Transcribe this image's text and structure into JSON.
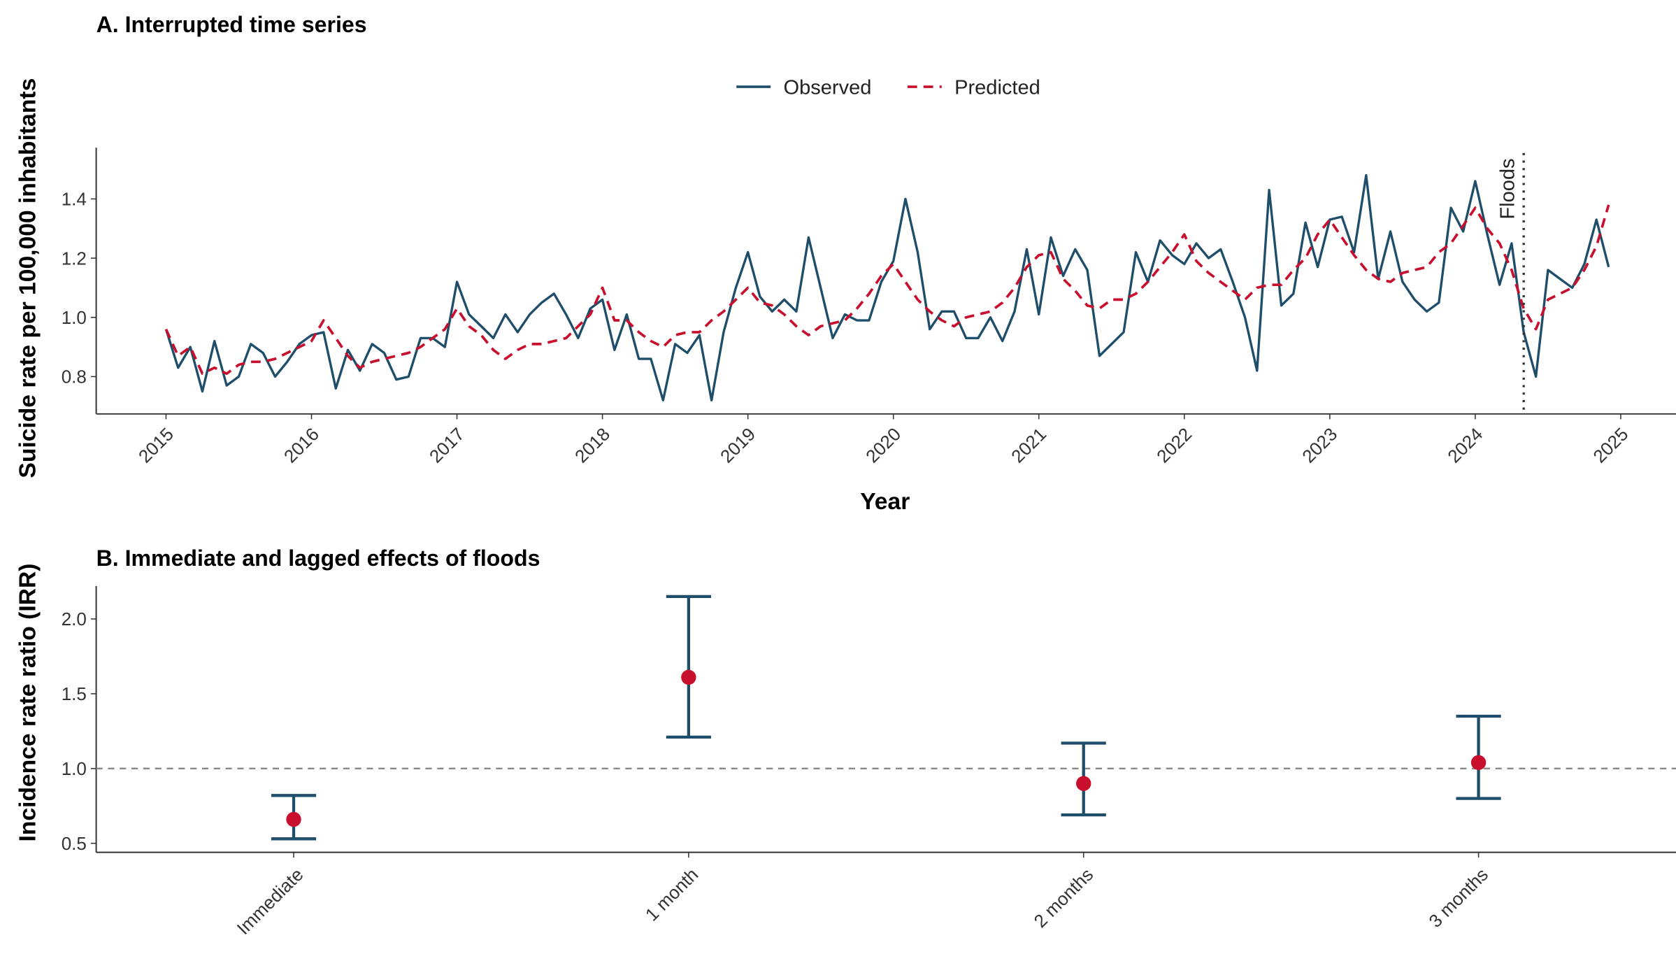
{
  "chart_data": [
    {
      "type": "line",
      "title": "A. Interrupted time series",
      "x_label": "Year",
      "y_label": "Suicide rate per 100,000 inhabitants",
      "x": [
        2015,
        2015.083,
        2015.167,
        2015.25,
        2015.333,
        2015.417,
        2015.5,
        2015.583,
        2015.667,
        2015.75,
        2015.833,
        2015.917,
        2016,
        2016.083,
        2016.167,
        2016.25,
        2016.333,
        2016.417,
        2016.5,
        2016.583,
        2016.667,
        2016.75,
        2016.833,
        2016.917,
        2017,
        2017.083,
        2017.167,
        2017.25,
        2017.333,
        2017.417,
        2017.5,
        2017.583,
        2017.667,
        2017.75,
        2017.833,
        2017.917,
        2018,
        2018.083,
        2018.167,
        2018.25,
        2018.333,
        2018.417,
        2018.5,
        2018.583,
        2018.667,
        2018.75,
        2018.833,
        2018.917,
        2019,
        2019.083,
        2019.167,
        2019.25,
        2019.333,
        2019.417,
        2019.5,
        2019.583,
        2019.667,
        2019.75,
        2019.833,
        2019.917,
        2020,
        2020.083,
        2020.167,
        2020.25,
        2020.333,
        2020.417,
        2020.5,
        2020.583,
        2020.667,
        2020.75,
        2020.833,
        2020.917,
        2021,
        2021.083,
        2021.167,
        2021.25,
        2021.333,
        2021.417,
        2021.5,
        2021.583,
        2021.667,
        2021.75,
        2021.833,
        2021.917,
        2022,
        2022.083,
        2022.167,
        2022.25,
        2022.333,
        2022.417,
        2022.5,
        2022.583,
        2022.667,
        2022.75,
        2022.833,
        2022.917,
        2023,
        2023.083,
        2023.167,
        2023.25,
        2023.333,
        2023.417,
        2023.5,
        2023.583,
        2023.667,
        2023.75,
        2023.833,
        2023.917,
        2024,
        2024.083,
        2024.167,
        2024.25,
        2024.333,
        2024.417,
        2024.5,
        2024.583,
        2024.667,
        2024.75,
        2024.833,
        2024.917
      ],
      "series": [
        {
          "name": "Observed",
          "color": "#1f4e6b",
          "line_style": "solid",
          "values": [
            0.96,
            0.83,
            0.9,
            0.75,
            0.92,
            0.77,
            0.8,
            0.91,
            0.88,
            0.8,
            0.85,
            0.91,
            0.94,
            0.95,
            0.76,
            0.89,
            0.82,
            0.91,
            0.88,
            0.79,
            0.8,
            0.93,
            0.93,
            0.9,
            1.12,
            1.01,
            0.97,
            0.93,
            1.01,
            0.95,
            1.01,
            1.05,
            1.08,
            1.01,
            0.93,
            1.03,
            1.06,
            0.89,
            1.01,
            0.86,
            0.86,
            0.72,
            0.91,
            0.88,
            0.94,
            0.72,
            0.95,
            1.1,
            1.22,
            1.07,
            1.02,
            1.06,
            1.02,
            1.27,
            1.1,
            0.93,
            1.01,
            0.99,
            0.99,
            1.12,
            1.19,
            1.4,
            1.22,
            0.96,
            1.02,
            1.02,
            0.93,
            0.93,
            1.0,
            0.92,
            1.02,
            1.23,
            1.01,
            1.27,
            1.14,
            1.23,
            1.16,
            0.87,
            0.91,
            0.95,
            1.22,
            1.12,
            1.26,
            1.21,
            1.18,
            1.25,
            1.2,
            1.23,
            1.12,
            1.0,
            0.82,
            1.43,
            1.04,
            1.08,
            1.32,
            1.17,
            1.33,
            1.34,
            1.22,
            1.48,
            1.13,
            1.29,
            1.12,
            1.06,
            1.02,
            1.05,
            1.37,
            1.29,
            1.46,
            1.28,
            1.11,
            1.25,
            0.95,
            0.8,
            1.16,
            1.13,
            1.1,
            1.18,
            1.33,
            1.17
          ]
        },
        {
          "name": "Predicted",
          "color": "#c8102e",
          "line_style": "dashed",
          "values": [
            0.96,
            0.87,
            0.9,
            0.81,
            0.83,
            0.81,
            0.84,
            0.85,
            0.85,
            0.86,
            0.88,
            0.9,
            0.92,
            0.99,
            0.93,
            0.87,
            0.83,
            0.85,
            0.86,
            0.87,
            0.88,
            0.9,
            0.93,
            0.96,
            1.03,
            0.97,
            0.94,
            0.89,
            0.86,
            0.89,
            0.91,
            0.91,
            0.92,
            0.93,
            0.97,
            1.01,
            1.1,
            0.99,
            0.99,
            0.95,
            0.92,
            0.9,
            0.94,
            0.95,
            0.95,
            0.99,
            1.02,
            1.06,
            1.1,
            1.05,
            1.04,
            1.01,
            0.97,
            0.94,
            0.97,
            0.98,
            0.99,
            1.03,
            1.08,
            1.14,
            1.18,
            1.12,
            1.06,
            1.02,
            0.99,
            0.97,
            1.0,
            1.01,
            1.02,
            1.05,
            1.1,
            1.17,
            1.21,
            1.22,
            1.13,
            1.09,
            1.04,
            1.03,
            1.06,
            1.06,
            1.08,
            1.12,
            1.17,
            1.22,
            1.28,
            1.19,
            1.15,
            1.12,
            1.09,
            1.06,
            1.1,
            1.11,
            1.11,
            1.16,
            1.2,
            1.28,
            1.33,
            1.27,
            1.21,
            1.16,
            1.13,
            1.12,
            1.15,
            1.16,
            1.17,
            1.22,
            1.25,
            1.31,
            1.37,
            1.3,
            1.25,
            1.16,
            1.03,
            0.96,
            1.06,
            1.08,
            1.1,
            1.16,
            1.24,
            1.38
          ]
        }
      ],
      "xlim": [
        2014.52,
        2025.38
      ],
      "xticks": [
        2015,
        2016,
        2017,
        2018,
        2019,
        2020,
        2021,
        2022,
        2023,
        2024,
        2025
      ],
      "ylim": [
        0.674,
        1.573
      ],
      "yticks": [
        0.8,
        {
          "value": 1,
          "label": "1.0"
        },
        1.2,
        1.4
      ],
      "annotations": [
        {
          "x": 2024.333,
          "label": "Floods"
        }
      ],
      "legend": "top"
    },
    {
      "type": "errorbar",
      "title": "B. Immediate and lagged effects of floods",
      "y_label": "Incidence rate ratio (IRR)",
      "categories": [
        "Immediate",
        "1 month",
        "2 months",
        "3 months"
      ],
      "values": [
        0.66,
        1.61,
        0.9,
        1.04
      ],
      "lower": [
        0.53,
        1.21,
        0.69,
        0.8
      ],
      "upper": [
        0.82,
        2.15,
        1.17,
        1.35
      ],
      "point_color": "#c8102e",
      "bar_color": "#1f4e6b",
      "ylim": [
        0.44,
        2.22
      ],
      "yticks": [
        0.5,
        {
          "value": 1,
          "label": "1.0"
        },
        1.5,
        {
          "value": 2,
          "label": "2.0"
        }
      ],
      "hline": 1
    }
  ]
}
